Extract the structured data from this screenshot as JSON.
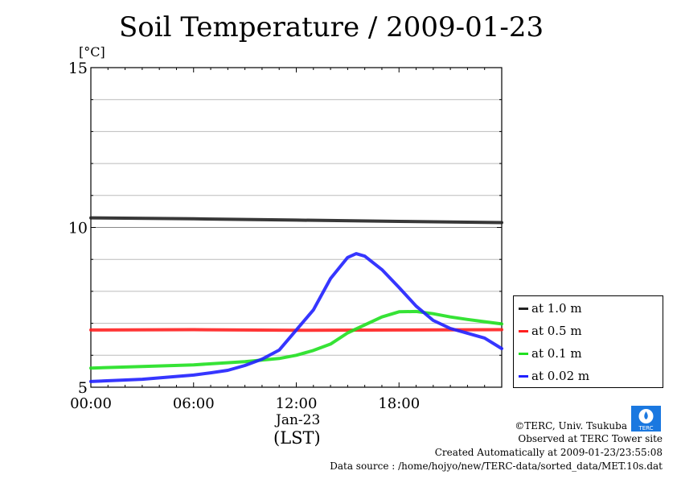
{
  "chart_data": {
    "type": "line",
    "title": "Soil Temperature / 2009-01-23",
    "ylabel": "[°C]",
    "xlabel": "(LST)",
    "date_label": "Jan-23",
    "ylim": [
      5,
      15
    ],
    "xlim": [
      0,
      24
    ],
    "yticks": [
      {
        "v": 5,
        "label": "5"
      },
      {
        "v": 10,
        "label": "10"
      },
      {
        "v": 15,
        "label": "15"
      }
    ],
    "xticks": [
      {
        "v": 0,
        "label": "00:00"
      },
      {
        "v": 6,
        "label": "06:00"
      },
      {
        "v": 12,
        "label": "12:00"
      },
      {
        "v": 18,
        "label": "18:00"
      }
    ],
    "grid": true,
    "legend_position": "right-bottom outside",
    "series": [
      {
        "name": "at 1.0 m",
        "color": "#222222",
        "x": [
          0,
          6,
          12,
          18,
          24
        ],
        "values": [
          10.3,
          10.27,
          10.23,
          10.19,
          10.15
        ]
      },
      {
        "name": "at 0.5 m",
        "color": "#ff2020",
        "x": [
          0,
          6,
          12,
          18,
          24
        ],
        "values": [
          6.79,
          6.8,
          6.78,
          6.79,
          6.8
        ]
      },
      {
        "name": "at 0.1 m",
        "color": "#20e020",
        "x": [
          0,
          3,
          6,
          9,
          11,
          12,
          13,
          14,
          15,
          16,
          17,
          18,
          19,
          20,
          21,
          22,
          23,
          24
        ],
        "values": [
          5.6,
          5.65,
          5.7,
          5.8,
          5.9,
          6.0,
          6.15,
          6.35,
          6.7,
          6.95,
          7.2,
          7.36,
          7.37,
          7.3,
          7.2,
          7.12,
          7.05,
          6.98
        ]
      },
      {
        "name": "at 0.02 m",
        "color": "#2020ff",
        "x": [
          0,
          3,
          6,
          7,
          8,
          9,
          10,
          11,
          12,
          13,
          14,
          15,
          15.5,
          16,
          17,
          18,
          19,
          20,
          21,
          22,
          23,
          24
        ],
        "values": [
          5.18,
          5.25,
          5.38,
          5.45,
          5.53,
          5.68,
          5.88,
          6.16,
          6.79,
          7.42,
          8.4,
          9.06,
          9.18,
          9.1,
          8.68,
          8.12,
          7.54,
          7.09,
          6.84,
          6.69,
          6.54,
          6.21
        ]
      }
    ]
  },
  "footer": {
    "copyright": "©TERC, Univ. Tsukuba",
    "observed": "Observed at TERC Tower site",
    "created": "Created Automatically at 2009-01-23/23:55:08",
    "source": "Data source : /home/hojyo/new/TERC-data/sorted_data/MET.10s.dat",
    "logo_text": "TERC"
  }
}
